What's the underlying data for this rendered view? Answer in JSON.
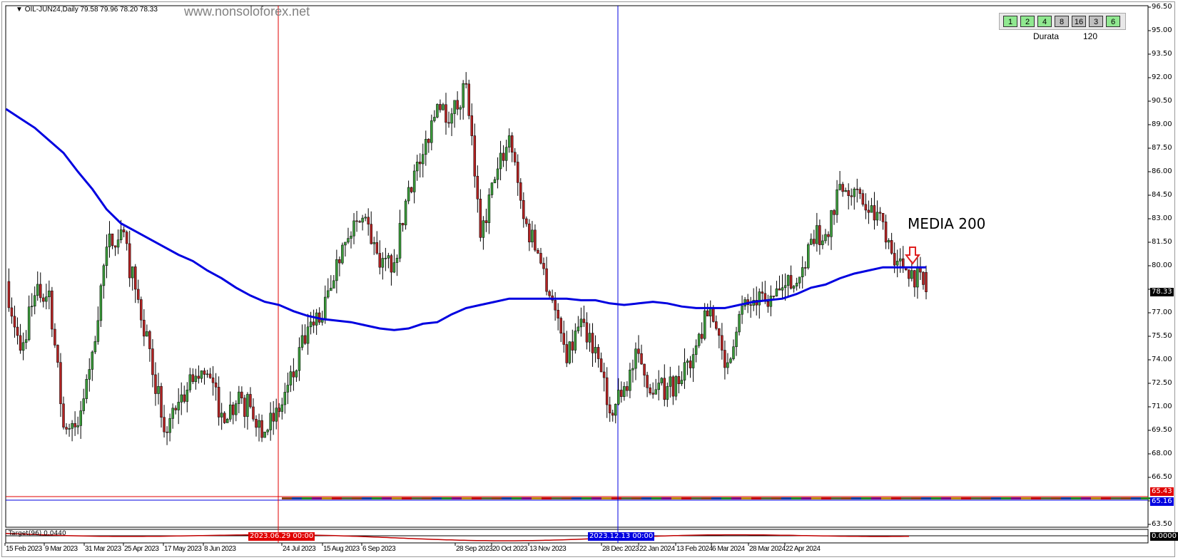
{
  "header": {
    "symbol_info": "OIL-JUN24,Daily  79.58 79.96 78.20 78.33",
    "watermark": "www.nonsoloforex.net"
  },
  "duration_panel": {
    "buttons": [
      {
        "label": "1",
        "color": "#90e890"
      },
      {
        "label": "2",
        "color": "#90e890"
      },
      {
        "label": "4",
        "color": "#90e890"
      },
      {
        "label": "8",
        "color": "#c0c0c0"
      },
      {
        "label": "16",
        "color": "#c0c0c0"
      },
      {
        "label": "3",
        "color": "#c0c0c0"
      },
      {
        "label": "6",
        "color": "#90e890"
      }
    ],
    "label": "Durata",
    "value": "120"
  },
  "annotation": {
    "text": "MEDIA 200",
    "arrow_color": "#e02020"
  },
  "price_tags": {
    "last": "78.33",
    "red_line": "65.43",
    "blue_line": "65.16",
    "indicator": "0.0000"
  },
  "vertical_lines": [
    {
      "label": "2023.06.29 00:00",
      "color": "#e00000"
    },
    {
      "label": "2023.12.13 00:00",
      "color": "#0000e0"
    }
  ],
  "indicator": {
    "label": "Target(96)  0.0440",
    "color": "#c00000"
  },
  "chart_data": {
    "type": "candlestick",
    "symbol": "OIL-JUN24",
    "timeframe": "Daily",
    "ylim": [
      63.5,
      96.5
    ],
    "y_ticks": [
      "96.50",
      "95.00",
      "93.50",
      "92.00",
      "90.50",
      "89.00",
      "87.50",
      "86.00",
      "84.50",
      "83.00",
      "81.50",
      "80.00",
      "78.50",
      "77.00",
      "75.50",
      "74.00",
      "72.50",
      "71.00",
      "69.50",
      "68.00",
      "66.50",
      "65.00",
      "63.50"
    ],
    "x_ticks": [
      "15 Feb 2023",
      "9 Mar 2023",
      "31 Mar 2023",
      "25 Apr 2023",
      "17 May 2023",
      "8 Jun 2023",
      "29 Jun 2023",
      "24 Jul 2023",
      "15 Aug 2023",
      "6 Sep 2023",
      "28 Sep 2023",
      "20 Oct 2023",
      "13 Nov 2023",
      "13 Dec 2023",
      "28 Dec 2023",
      "22 Jan 2024",
      "13 Feb 2024",
      "6 Mar 2024",
      "28 Mar 2024",
      "22 Apr 2024"
    ],
    "up_color": "#3a9a3a",
    "down_color": "#b22222",
    "ma_color": "#0000e0",
    "last_ohlc": {
      "open": 79.58,
      "high": 79.96,
      "low": 78.2,
      "close": 78.33
    },
    "weekly_close": [
      79.0,
      74.6,
      78.1,
      78.4,
      69.7,
      69.8,
      74.5,
      81.2,
      82.3,
      78.5,
      74.7,
      69.4,
      71.3,
      72.6,
      73.1,
      70.6,
      71.2,
      71.0,
      69.4,
      70.7,
      72.9,
      76.1,
      76.6,
      80.4,
      81.9,
      83.1,
      79.9,
      80.2,
      85.0,
      87.1,
      90.3,
      89.7,
      91.6,
      81.8,
      85.5,
      88.3,
      83.0,
      80.8,
      77.8,
      73.8,
      76.6,
      74.8,
      70.6,
      72.3,
      74.4,
      71.8,
      72.3,
      72.7,
      74.9,
      77.3,
      73.5,
      76.9,
      77.8,
      77.4,
      78.6,
      78.9,
      81.7,
      82.0,
      85.2,
      84.9,
      83.4,
      82.8,
      80.3,
      79.7,
      78.33
    ],
    "ma200_weekly": [
      90.0,
      89.4,
      88.8,
      88.0,
      87.2,
      86.0,
      84.9,
      83.6,
      82.7,
      82.2,
      81.7,
      81.2,
      80.7,
      80.3,
      79.7,
      79.2,
      78.6,
      78.1,
      77.7,
      77.5,
      77.1,
      76.8,
      76.6,
      76.5,
      76.4,
      76.2,
      76.0,
      75.9,
      76.0,
      76.3,
      76.4,
      76.9,
      77.3,
      77.5,
      77.7,
      77.9,
      77.9,
      77.9,
      77.9,
      77.9,
      77.8,
      77.8,
      77.6,
      77.5,
      77.6,
      77.7,
      77.6,
      77.4,
      77.3,
      77.3,
      77.3,
      77.5,
      77.7,
      77.8,
      77.9,
      78.2,
      78.6,
      78.8,
      79.2,
      79.5,
      79.7,
      79.9,
      79.9,
      79.9,
      79.9
    ]
  }
}
